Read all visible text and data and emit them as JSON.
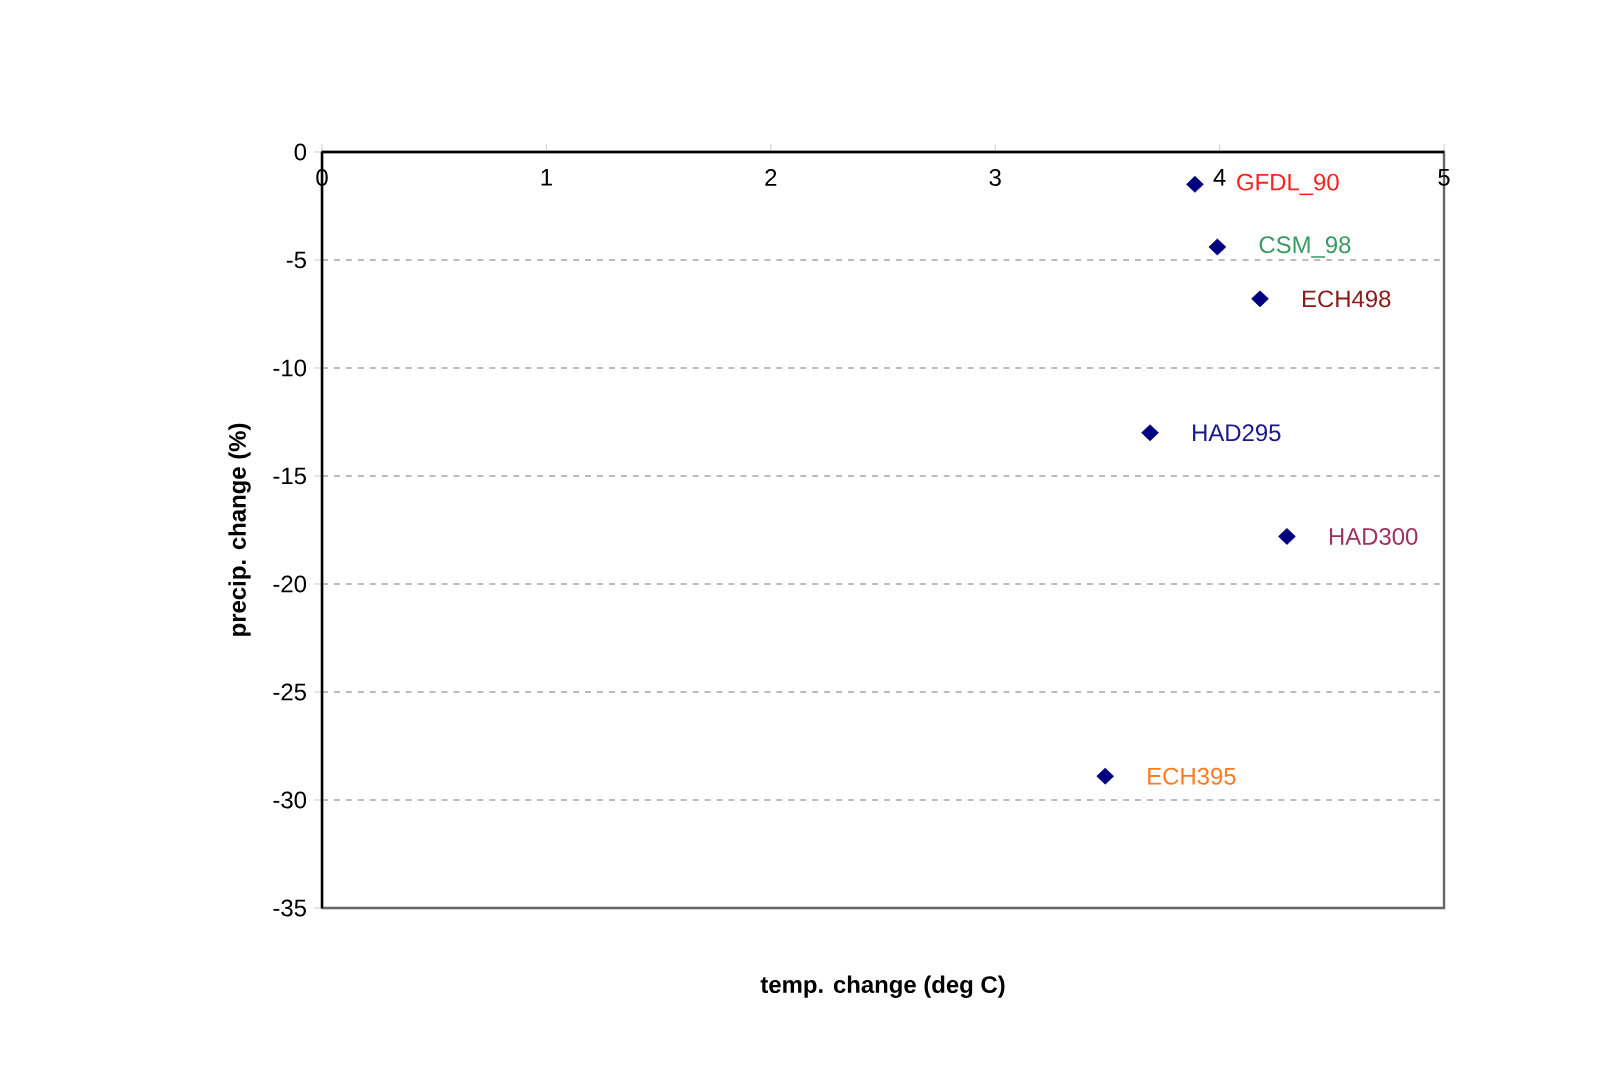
{
  "chart_data": {
    "type": "scatter",
    "xlabel": "temp. change (deg C)",
    "ylabel": "precip. change (%)",
    "x": [
      3.89,
      3.99,
      4.18,
      3.69,
      4.3,
      3.49
    ],
    "values": [
      -1.5,
      -4.4,
      -6.8,
      -13,
      -17.8,
      -28.9
    ],
    "color": "#000080",
    "marker": "diamond",
    "grid": "y",
    "xlim": [
      0,
      5
    ],
    "xticks": [
      0,
      1,
      2,
      3,
      4,
      5
    ],
    "ylim": [
      -35,
      0
    ],
    "yticks": [
      -35,
      -30,
      -25,
      -20,
      -15,
      -10,
      -5,
      0
    ],
    "annotations": [
      {
        "text": "GFDL_90",
        "x": 3.89,
        "y": -1.5
      },
      {
        "text": "CSM_98",
        "x": 3.99,
        "y": -4.4
      },
      {
        "text": "ECH498",
        "x": 4.18,
        "y": -6.8
      },
      {
        "text": "HAD295",
        "x": 3.69,
        "y": -13
      },
      {
        "text": "HAD300",
        "x": 4.3,
        "y": -17.8
      },
      {
        "text": "ECH395",
        "x": 3.49,
        "y": -28.9
      }
    ]
  }
}
